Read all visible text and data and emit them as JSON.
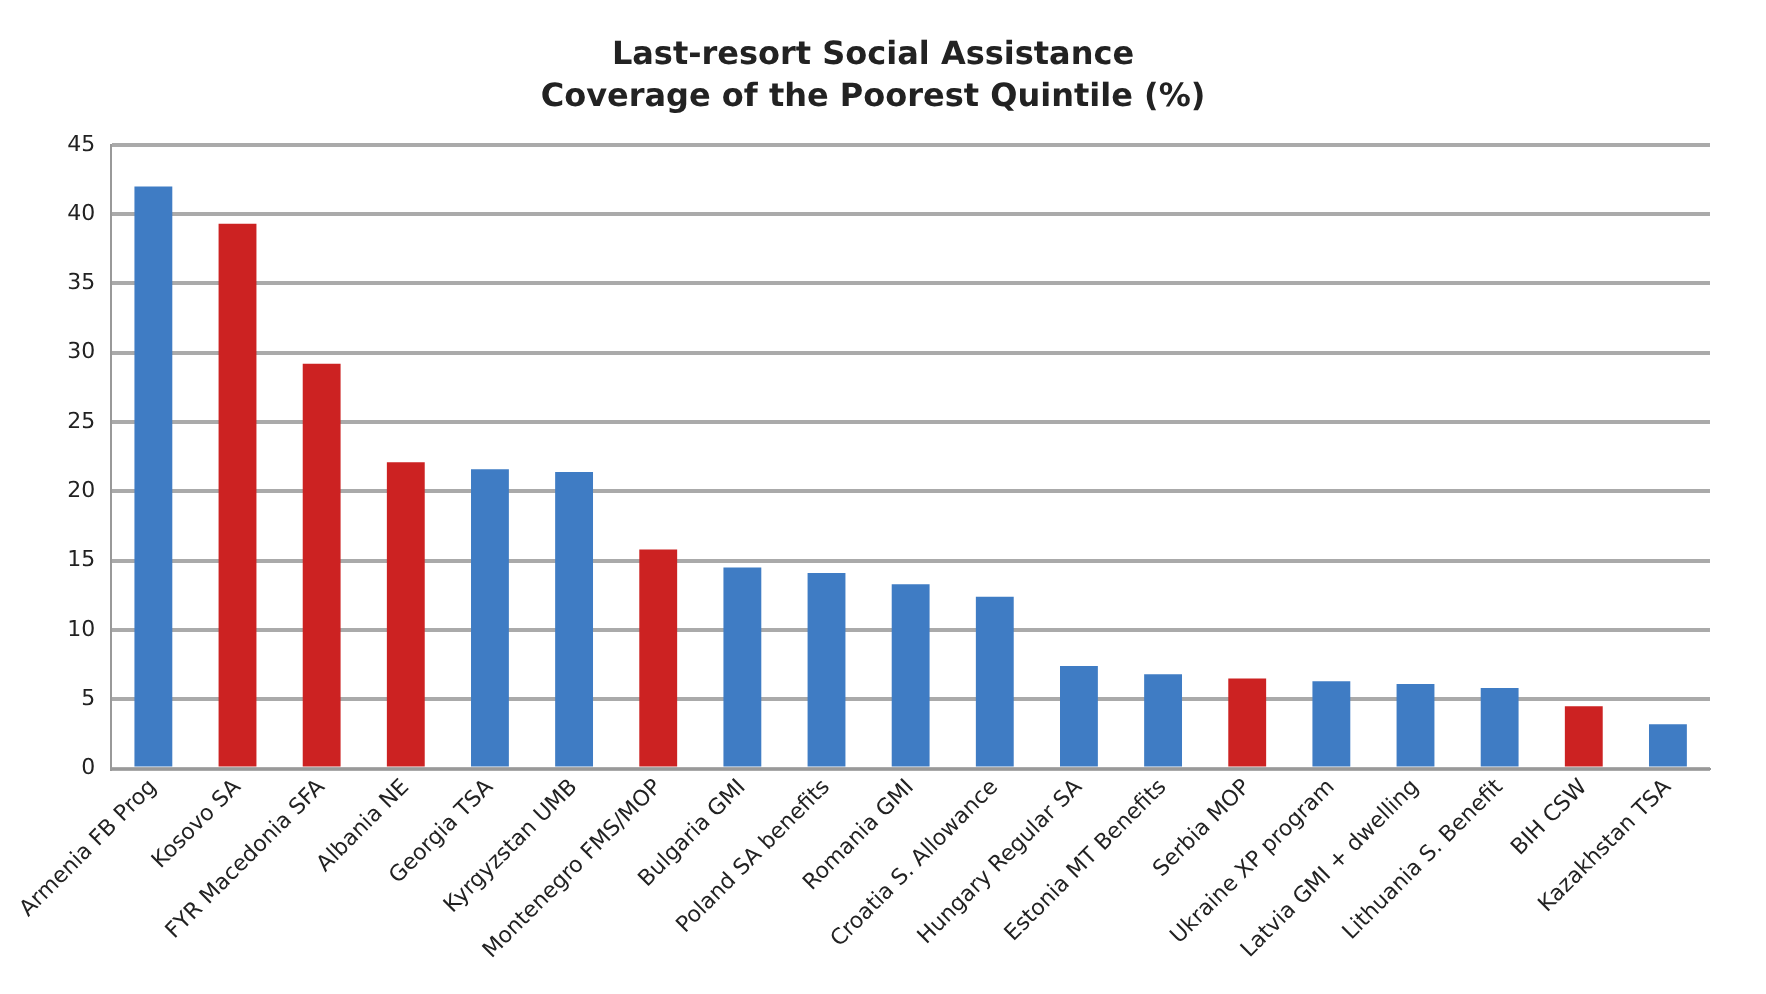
{
  "chart_data": {
    "type": "bar",
    "title": "Last-resort Social Assistance",
    "subtitle": "Coverage of the Poorest Quintile (%)",
    "categories": [
      "Armenia FB Prog",
      "Kosovo SA",
      "FYR Macedonia SFA",
      "Albania NE",
      "Georgia TSA",
      "Kyrgyzstan UMB",
      "Montenegro FMS/MOP",
      "Bulgaria GMI",
      "Poland SA benefits",
      "Romania GMI",
      "Croatia S. Allowance",
      "Hungary Regular SA",
      "Estonia MT Benefits",
      "Serbia MOP",
      "Ukraine XP program",
      "Latvia GMI + dwelling",
      "Lithuania S. Benefit",
      "BIH CSW",
      "Kazakhstan TSA"
    ],
    "values": [
      42,
      39.3,
      29.2,
      22.1,
      21.6,
      21.4,
      15.8,
      14.5,
      14.1,
      13.3,
      12.4,
      7.4,
      6.8,
      6.5,
      6.3,
      6.1,
      5.8,
      4.5,
      3.2
    ],
    "colors": [
      "#3f7cc4",
      "#cc2222",
      "#cc2222",
      "#cc2222",
      "#3f7cc4",
      "#3f7cc4",
      "#cc2222",
      "#3f7cc4",
      "#3f7cc4",
      "#3f7cc4",
      "#3f7cc4",
      "#3f7cc4",
      "#3f7cc4",
      "#cc2222",
      "#3f7cc4",
      "#3f7cc4",
      "#3f7cc4",
      "#cc2222",
      "#3f7cc4"
    ],
    "ylim": [
      0,
      45
    ],
    "yticks": [
      0,
      5,
      10,
      15,
      20,
      25,
      30,
      35,
      40,
      45
    ],
    "grid": "y",
    "legend": false
  }
}
